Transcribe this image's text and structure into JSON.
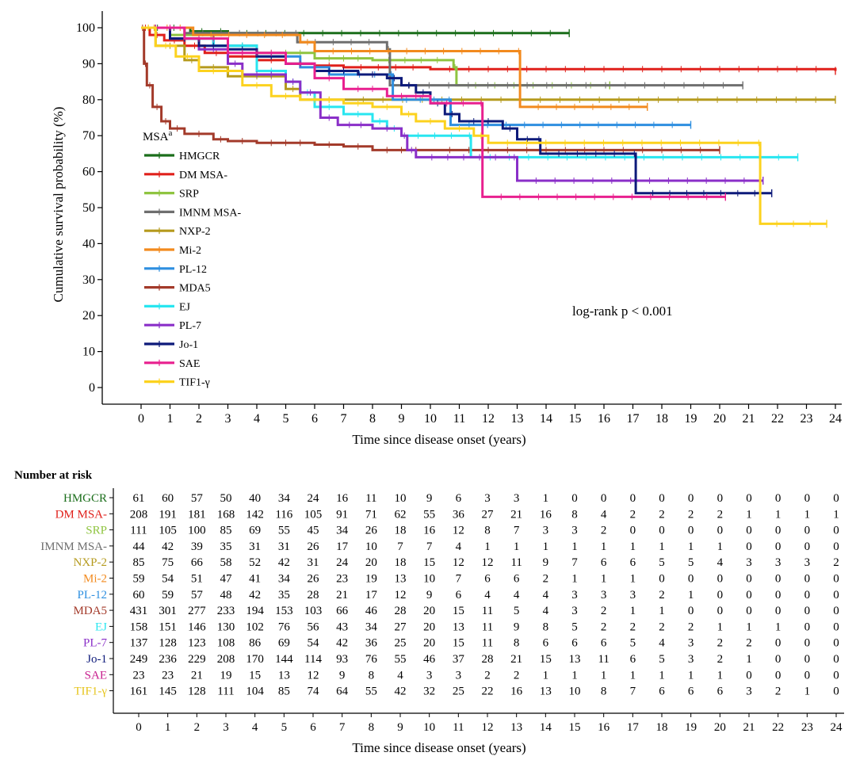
{
  "chart_data": {
    "type": "line",
    "subtype": "kaplan-meier",
    "ylabel": "Cumulative survival probability (%)",
    "xlabel": "Time since disease onset (years)",
    "xlim": [
      0,
      24
    ],
    "ylim": [
      0,
      100
    ],
    "xticks": [
      0,
      1,
      2,
      3,
      4,
      5,
      6,
      7,
      8,
      9,
      10,
      11,
      12,
      13,
      14,
      15,
      16,
      17,
      18,
      19,
      20,
      21,
      22,
      23,
      24
    ],
    "yticks": [
      0,
      10,
      20,
      30,
      40,
      50,
      60,
      70,
      80,
      90,
      100
    ],
    "legend_title": "MSA",
    "legend_title_sup": "a",
    "legend_position": "left",
    "annotation": "log-rank p < 0.001",
    "series": [
      {
        "name": "HMGCR",
        "color": "#1b6e1b",
        "points": [
          [
            0,
            100
          ],
          [
            1.7,
            99
          ],
          [
            2.5,
            99
          ],
          [
            3,
            98.5
          ],
          [
            14.8,
            98.5
          ]
        ]
      },
      {
        "name": "DM MSA-",
        "color": "#e0201b",
        "points": [
          [
            0,
            100
          ],
          [
            0.3,
            98
          ],
          [
            0.8,
            96.5
          ],
          [
            1.5,
            95
          ],
          [
            2.2,
            93
          ],
          [
            3,
            92
          ],
          [
            4,
            91
          ],
          [
            5,
            90
          ],
          [
            6,
            89.5
          ],
          [
            7,
            89
          ],
          [
            10,
            88.5
          ],
          [
            24,
            88
          ]
        ]
      },
      {
        "name": "SRP",
        "color": "#8fc440",
        "points": [
          [
            0,
            100
          ],
          [
            1,
            98
          ],
          [
            2.5,
            95
          ],
          [
            4,
            93
          ],
          [
            6,
            91.5
          ],
          [
            8,
            91
          ],
          [
            10.8,
            89
          ],
          [
            10.9,
            84
          ],
          [
            16.2,
            84
          ]
        ]
      },
      {
        "name": "IMNM MSA-",
        "color": "#6f6f6f",
        "points": [
          [
            0,
            100
          ],
          [
            1.5,
            98.5
          ],
          [
            5.3,
            98.5
          ],
          [
            5.4,
            96
          ],
          [
            8.5,
            94
          ],
          [
            8.6,
            84
          ],
          [
            20.8,
            84
          ]
        ]
      },
      {
        "name": "NXP-2",
        "color": "#b59a1d",
        "points": [
          [
            0,
            100
          ],
          [
            0.5,
            95
          ],
          [
            1.5,
            91
          ],
          [
            2,
            89
          ],
          [
            3,
            86.5
          ],
          [
            5,
            83
          ],
          [
            5.5,
            80
          ],
          [
            7,
            80
          ],
          [
            24,
            80
          ]
        ]
      },
      {
        "name": "Mi-2",
        "color": "#f28a1e",
        "points": [
          [
            0,
            100
          ],
          [
            1.8,
            98
          ],
          [
            5.5,
            96
          ],
          [
            6,
            93.5
          ],
          [
            13,
            93.5
          ],
          [
            13.1,
            78
          ],
          [
            17.5,
            78
          ]
        ]
      },
      {
        "name": "PL-12",
        "color": "#2e8fe0",
        "points": [
          [
            0,
            100
          ],
          [
            1,
            97
          ],
          [
            2.5,
            95
          ],
          [
            4,
            92
          ],
          [
            5.5,
            89
          ],
          [
            6.5,
            87
          ],
          [
            8.6,
            87
          ],
          [
            8.7,
            80
          ],
          [
            10.6,
            80
          ],
          [
            10.7,
            73
          ],
          [
            19,
            73
          ]
        ]
      },
      {
        "name": "MDA5",
        "color": "#a33a2a",
        "points": [
          [
            0,
            100
          ],
          [
            0.1,
            90
          ],
          [
            0.2,
            84
          ],
          [
            0.4,
            78
          ],
          [
            0.7,
            74
          ],
          [
            1,
            72
          ],
          [
            1.5,
            70.5
          ],
          [
            2.5,
            69
          ],
          [
            3,
            68.5
          ],
          [
            4,
            68
          ],
          [
            6,
            67.5
          ],
          [
            7,
            67
          ],
          [
            8,
            66
          ],
          [
            10,
            66
          ],
          [
            20,
            66
          ]
        ]
      },
      {
        "name": "EJ",
        "color": "#28e6f0",
        "points": [
          [
            0,
            100
          ],
          [
            1,
            97
          ],
          [
            2.5,
            95
          ],
          [
            4,
            88
          ],
          [
            5,
            85
          ],
          [
            5.5,
            82
          ],
          [
            6,
            78
          ],
          [
            7,
            76
          ],
          [
            8,
            74
          ],
          [
            8.5,
            72
          ],
          [
            9,
            70
          ],
          [
            11.3,
            70
          ],
          [
            11.4,
            64
          ],
          [
            22.7,
            64
          ]
        ]
      },
      {
        "name": "PL-7",
        "color": "#8a2fc8",
        "points": [
          [
            0,
            100
          ],
          [
            1,
            97
          ],
          [
            2,
            94
          ],
          [
            3,
            90
          ],
          [
            3.5,
            87
          ],
          [
            5,
            85
          ],
          [
            5.5,
            82
          ],
          [
            6.2,
            75
          ],
          [
            6.8,
            73
          ],
          [
            8,
            72
          ],
          [
            9,
            70
          ],
          [
            9.2,
            66
          ],
          [
            9.5,
            64
          ],
          [
            12.8,
            64
          ],
          [
            13,
            57.5
          ],
          [
            21.5,
            57.5
          ]
        ]
      },
      {
        "name": "Jo-1",
        "color": "#0d1a7a",
        "points": [
          [
            0,
            100
          ],
          [
            1,
            97
          ],
          [
            2,
            95
          ],
          [
            3,
            94
          ],
          [
            4,
            92
          ],
          [
            5,
            90
          ],
          [
            6,
            88
          ],
          [
            7.5,
            87
          ],
          [
            8.5,
            86
          ],
          [
            9,
            84
          ],
          [
            9.5,
            82
          ],
          [
            10,
            79
          ],
          [
            10.5,
            76
          ],
          [
            11,
            74
          ],
          [
            12.5,
            72
          ],
          [
            13,
            69
          ],
          [
            13.7,
            69
          ],
          [
            13.8,
            65
          ],
          [
            17,
            65
          ],
          [
            17.1,
            54
          ],
          [
            21.8,
            54
          ]
        ]
      },
      {
        "name": "SAE",
        "color": "#e8208f",
        "points": [
          [
            0,
            100
          ],
          [
            1.5,
            97
          ],
          [
            3,
            93
          ],
          [
            5,
            90
          ],
          [
            6,
            86
          ],
          [
            7,
            83
          ],
          [
            8.5,
            81
          ],
          [
            10,
            79
          ],
          [
            11.7,
            79
          ],
          [
            11.8,
            53
          ],
          [
            20.2,
            53
          ]
        ]
      },
      {
        "name": "TIF1-γ",
        "color": "#fcd21e",
        "points": [
          [
            0,
            100
          ],
          [
            0.5,
            95
          ],
          [
            1.2,
            92
          ],
          [
            2,
            88
          ],
          [
            3.5,
            84
          ],
          [
            4.5,
            81
          ],
          [
            5.5,
            80
          ],
          [
            7,
            79
          ],
          [
            8,
            78
          ],
          [
            9,
            76
          ],
          [
            9.5,
            74
          ],
          [
            10.5,
            72
          ],
          [
            11.5,
            70
          ],
          [
            12,
            68
          ],
          [
            21.3,
            68
          ],
          [
            21.4,
            45.5
          ],
          [
            23.7,
            45.5
          ]
        ]
      }
    ]
  },
  "risk_table": {
    "title": "Number at risk",
    "xlabel": "Time since disease onset (years)",
    "xticks": [
      0,
      1,
      2,
      3,
      4,
      5,
      6,
      7,
      8,
      9,
      10,
      11,
      12,
      13,
      14,
      15,
      16,
      17,
      18,
      19,
      20,
      21,
      22,
      23,
      24
    ],
    "rows": [
      {
        "name": "HMGCR",
        "color": "#1b6e1b",
        "values": [
          61,
          60,
          57,
          50,
          40,
          34,
          24,
          16,
          11,
          10,
          9,
          6,
          3,
          3,
          1,
          0,
          0,
          0,
          0,
          0,
          0,
          0,
          0,
          0,
          0
        ]
      },
      {
        "name": "DM MSA-",
        "color": "#e0201b",
        "values": [
          208,
          191,
          181,
          168,
          142,
          116,
          105,
          91,
          71,
          62,
          55,
          36,
          27,
          21,
          16,
          8,
          4,
          2,
          2,
          2,
          2,
          1,
          1,
          1,
          1
        ]
      },
      {
        "name": "SRP",
        "color": "#8fc440",
        "values": [
          111,
          105,
          100,
          85,
          69,
          55,
          45,
          34,
          26,
          18,
          16,
          12,
          8,
          7,
          3,
          3,
          2,
          0,
          0,
          0,
          0,
          0,
          0,
          0,
          0
        ]
      },
      {
        "name": "IMNM MSA-",
        "color": "#6f6f6f",
        "values": [
          44,
          42,
          39,
          35,
          31,
          31,
          26,
          17,
          10,
          7,
          7,
          4,
          1,
          1,
          1,
          1,
          1,
          1,
          1,
          1,
          1,
          0,
          0,
          0,
          0
        ]
      },
      {
        "name": "NXP-2",
        "color": "#b59a1d",
        "values": [
          85,
          75,
          66,
          58,
          52,
          42,
          31,
          24,
          20,
          18,
          15,
          12,
          12,
          11,
          9,
          7,
          6,
          6,
          5,
          5,
          4,
          3,
          3,
          3,
          2
        ]
      },
      {
        "name": "Mi-2",
        "color": "#f28a1e",
        "values": [
          59,
          54,
          51,
          47,
          41,
          34,
          26,
          23,
          19,
          13,
          10,
          7,
          6,
          6,
          2,
          1,
          1,
          1,
          0,
          0,
          0,
          0,
          0,
          0,
          0
        ]
      },
      {
        "name": "PL-12",
        "color": "#2e8fe0",
        "values": [
          60,
          59,
          57,
          48,
          42,
          35,
          28,
          21,
          17,
          12,
          9,
          6,
          4,
          4,
          4,
          3,
          3,
          3,
          2,
          1,
          0,
          0,
          0,
          0,
          0
        ]
      },
      {
        "name": "MDA5",
        "color": "#a33a2a",
        "values": [
          431,
          301,
          277,
          233,
          194,
          153,
          103,
          66,
          46,
          28,
          20,
          15,
          11,
          5,
          4,
          3,
          2,
          1,
          1,
          0,
          0,
          0,
          0,
          0,
          0
        ]
      },
      {
        "name": "EJ",
        "color": "#28e6f0",
        "values": [
          158,
          151,
          146,
          130,
          102,
          76,
          56,
          43,
          34,
          27,
          20,
          13,
          11,
          9,
          8,
          5,
          2,
          2,
          2,
          2,
          1,
          1,
          1,
          0,
          0
        ]
      },
      {
        "name": "PL-7",
        "color": "#8a2fc8",
        "values": [
          137,
          128,
          123,
          108,
          86,
          69,
          54,
          42,
          36,
          25,
          20,
          15,
          11,
          8,
          6,
          6,
          6,
          5,
          4,
          3,
          2,
          2,
          0,
          0,
          0
        ]
      },
      {
        "name": "Jo-1",
        "color": "#0d1a7a",
        "values": [
          249,
          236,
          229,
          208,
          170,
          144,
          114,
          93,
          76,
          55,
          46,
          37,
          28,
          21,
          15,
          13,
          11,
          6,
          5,
          3,
          2,
          1,
          0,
          0,
          0
        ]
      },
      {
        "name": "SAE",
        "color": "#c8208f",
        "values": [
          23,
          23,
          21,
          19,
          15,
          13,
          12,
          9,
          8,
          4,
          3,
          3,
          2,
          2,
          1,
          1,
          1,
          1,
          1,
          1,
          1,
          0,
          0,
          0,
          0
        ]
      },
      {
        "name": "TIF1-γ",
        "color": "#e6c41a",
        "values": [
          161,
          145,
          128,
          111,
          104,
          85,
          74,
          64,
          55,
          42,
          32,
          25,
          22,
          16,
          13,
          10,
          8,
          7,
          6,
          6,
          6,
          3,
          2,
          1,
          0
        ]
      }
    ]
  }
}
